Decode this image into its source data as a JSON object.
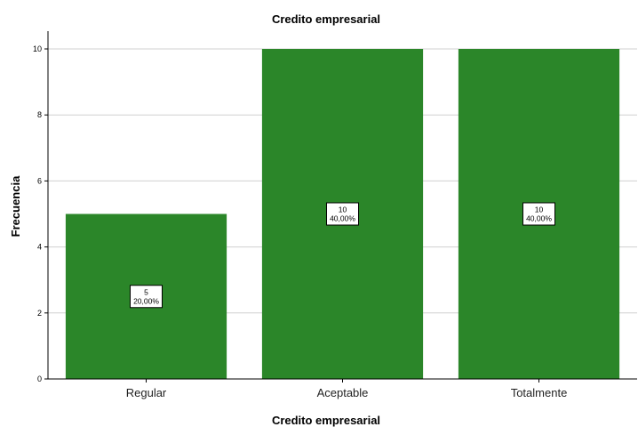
{
  "chart_data": {
    "type": "bar",
    "title": "Credito empresarial",
    "xlabel": "Credito empresarial",
    "ylabel": "Frecuencia",
    "categories": [
      "Regular",
      "Aceptable",
      "Totalmente"
    ],
    "values": [
      5,
      10,
      10
    ],
    "data_labels": [
      {
        "count": "5",
        "percent": "20,00%"
      },
      {
        "count": "10",
        "percent": "40,00%"
      },
      {
        "count": "10",
        "percent": "40,00%"
      }
    ],
    "ylim": [
      0,
      10
    ],
    "yticks": [
      "0",
      "2",
      "4",
      "6",
      "8",
      "10"
    ],
    "grid": true,
    "bar_color": "#2b8629",
    "grid_color": "#d0d0d0"
  }
}
